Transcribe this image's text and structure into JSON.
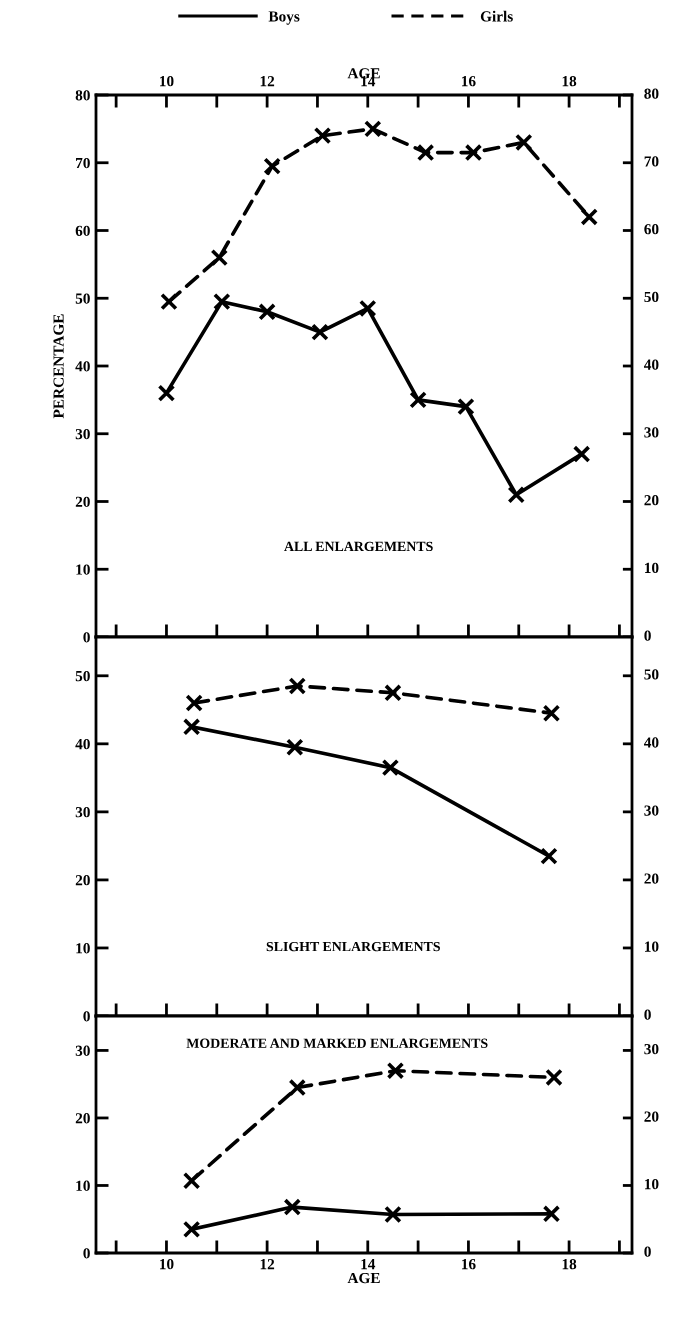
{
  "chart_data": [
    {
      "type": "line",
      "legend": "top",
      "marker": "cross",
      "ylabel": "PERCENTAGE",
      "xlabel": "AGE",
      "annotations": [
        "ALL ENLARGEMENTS"
      ],
      "xlim": [
        8.6,
        19.25
      ],
      "xticks": [
        {
          "value": 9,
          "label": null
        },
        10,
        {
          "value": 11,
          "label": null
        },
        12,
        {
          "value": 13,
          "label": null
        },
        14,
        {
          "value": 15,
          "label": null
        },
        16,
        {
          "value": 17,
          "label": null
        },
        18,
        {
          "value": 19,
          "label": null
        }
      ],
      "ylim": [
        0,
        80
      ],
      "yticks": [
        0,
        10,
        20,
        30,
        40,
        50,
        60,
        70,
        80
      ],
      "y2lim": [
        0,
        80
      ],
      "y2ticks": [
        0,
        10,
        20,
        30,
        40,
        50,
        60,
        70,
        80
      ],
      "series": [
        {
          "name": "Boys",
          "color": "#000000",
          "line_style": "solid",
          "x": [
            10.0,
            11.1,
            12.0,
            13.05,
            14.0,
            15.0,
            15.95,
            16.95,
            18.25
          ],
          "values": [
            36,
            49.5,
            48,
            45,
            48.5,
            35,
            34,
            21,
            27
          ]
        },
        {
          "name": "Girls",
          "color": "#000000",
          "line_style": "dashed",
          "x": [
            10.05,
            11.05,
            12.1,
            13.1,
            14.1,
            15.15,
            16.1,
            17.1,
            18.4
          ],
          "values": [
            49.5,
            56,
            69.5,
            74,
            75,
            71.5,
            71.5,
            73,
            62
          ]
        }
      ]
    },
    {
      "type": "line",
      "marker": "cross",
      "tick_labels": "y",
      "annotations": [
        "SLIGHT ENLARGEMENTS"
      ],
      "xlim": [
        8.6,
        19.25
      ],
      "xticks": [
        {
          "value": 9,
          "label": null
        },
        10,
        {
          "value": 11,
          "label": null
        },
        12,
        {
          "value": 13,
          "label": null
        },
        14,
        {
          "value": 15,
          "label": null
        },
        16,
        {
          "value": 17,
          "label": null
        },
        18,
        {
          "value": 19,
          "label": null
        }
      ],
      "ylim": [
        0,
        55.7
      ],
      "yticks": [
        0,
        10,
        20,
        30,
        40,
        50
      ],
      "y2lim": [
        0,
        55.7
      ],
      "y2ticks": [
        0,
        10,
        20,
        30,
        40,
        50
      ],
      "series": [
        {
          "name": "Boys",
          "color": "#000000",
          "line_style": "solid",
          "x": [
            10.5,
            12.55,
            14.45,
            17.6
          ],
          "values": [
            42.5,
            39.5,
            36.5,
            23.5
          ]
        },
        {
          "name": "Girls",
          "color": "#000000",
          "line_style": "dashed",
          "x": [
            10.55,
            12.6,
            14.5,
            17.65
          ],
          "values": [
            46,
            48.5,
            47.5,
            44.5
          ]
        }
      ]
    },
    {
      "type": "line",
      "marker": "cross",
      "xlabel": "AGE",
      "annotations": [
        "MODERATE AND MARKED ENLARGEMENTS"
      ],
      "xlim": [
        8.6,
        19.25
      ],
      "xticks": [
        {
          "value": 9,
          "label": null
        },
        10,
        {
          "value": 11,
          "label": null
        },
        12,
        {
          "value": 13,
          "label": null
        },
        14,
        {
          "value": 15,
          "label": null
        },
        16,
        {
          "value": 17,
          "label": null
        },
        18,
        {
          "value": 19,
          "label": null
        }
      ],
      "ylim": [
        0,
        35.1
      ],
      "yticks": [
        0,
        10,
        20,
        30
      ],
      "y2lim": [
        0,
        35.1
      ],
      "y2ticks": [
        0,
        10,
        20,
        30
      ],
      "series": [
        {
          "name": "Boys",
          "color": "#000000",
          "line_style": "solid",
          "x": [
            10.5,
            12.5,
            14.5,
            17.65
          ],
          "values": [
            3.5,
            6.8,
            5.7,
            5.8
          ]
        },
        {
          "name": "Girls",
          "color": "#000000",
          "line_style": "dashed",
          "x": [
            10.5,
            12.6,
            14.55,
            17.7
          ],
          "values": [
            10.7,
            24.5,
            27,
            26
          ]
        }
      ]
    }
  ]
}
